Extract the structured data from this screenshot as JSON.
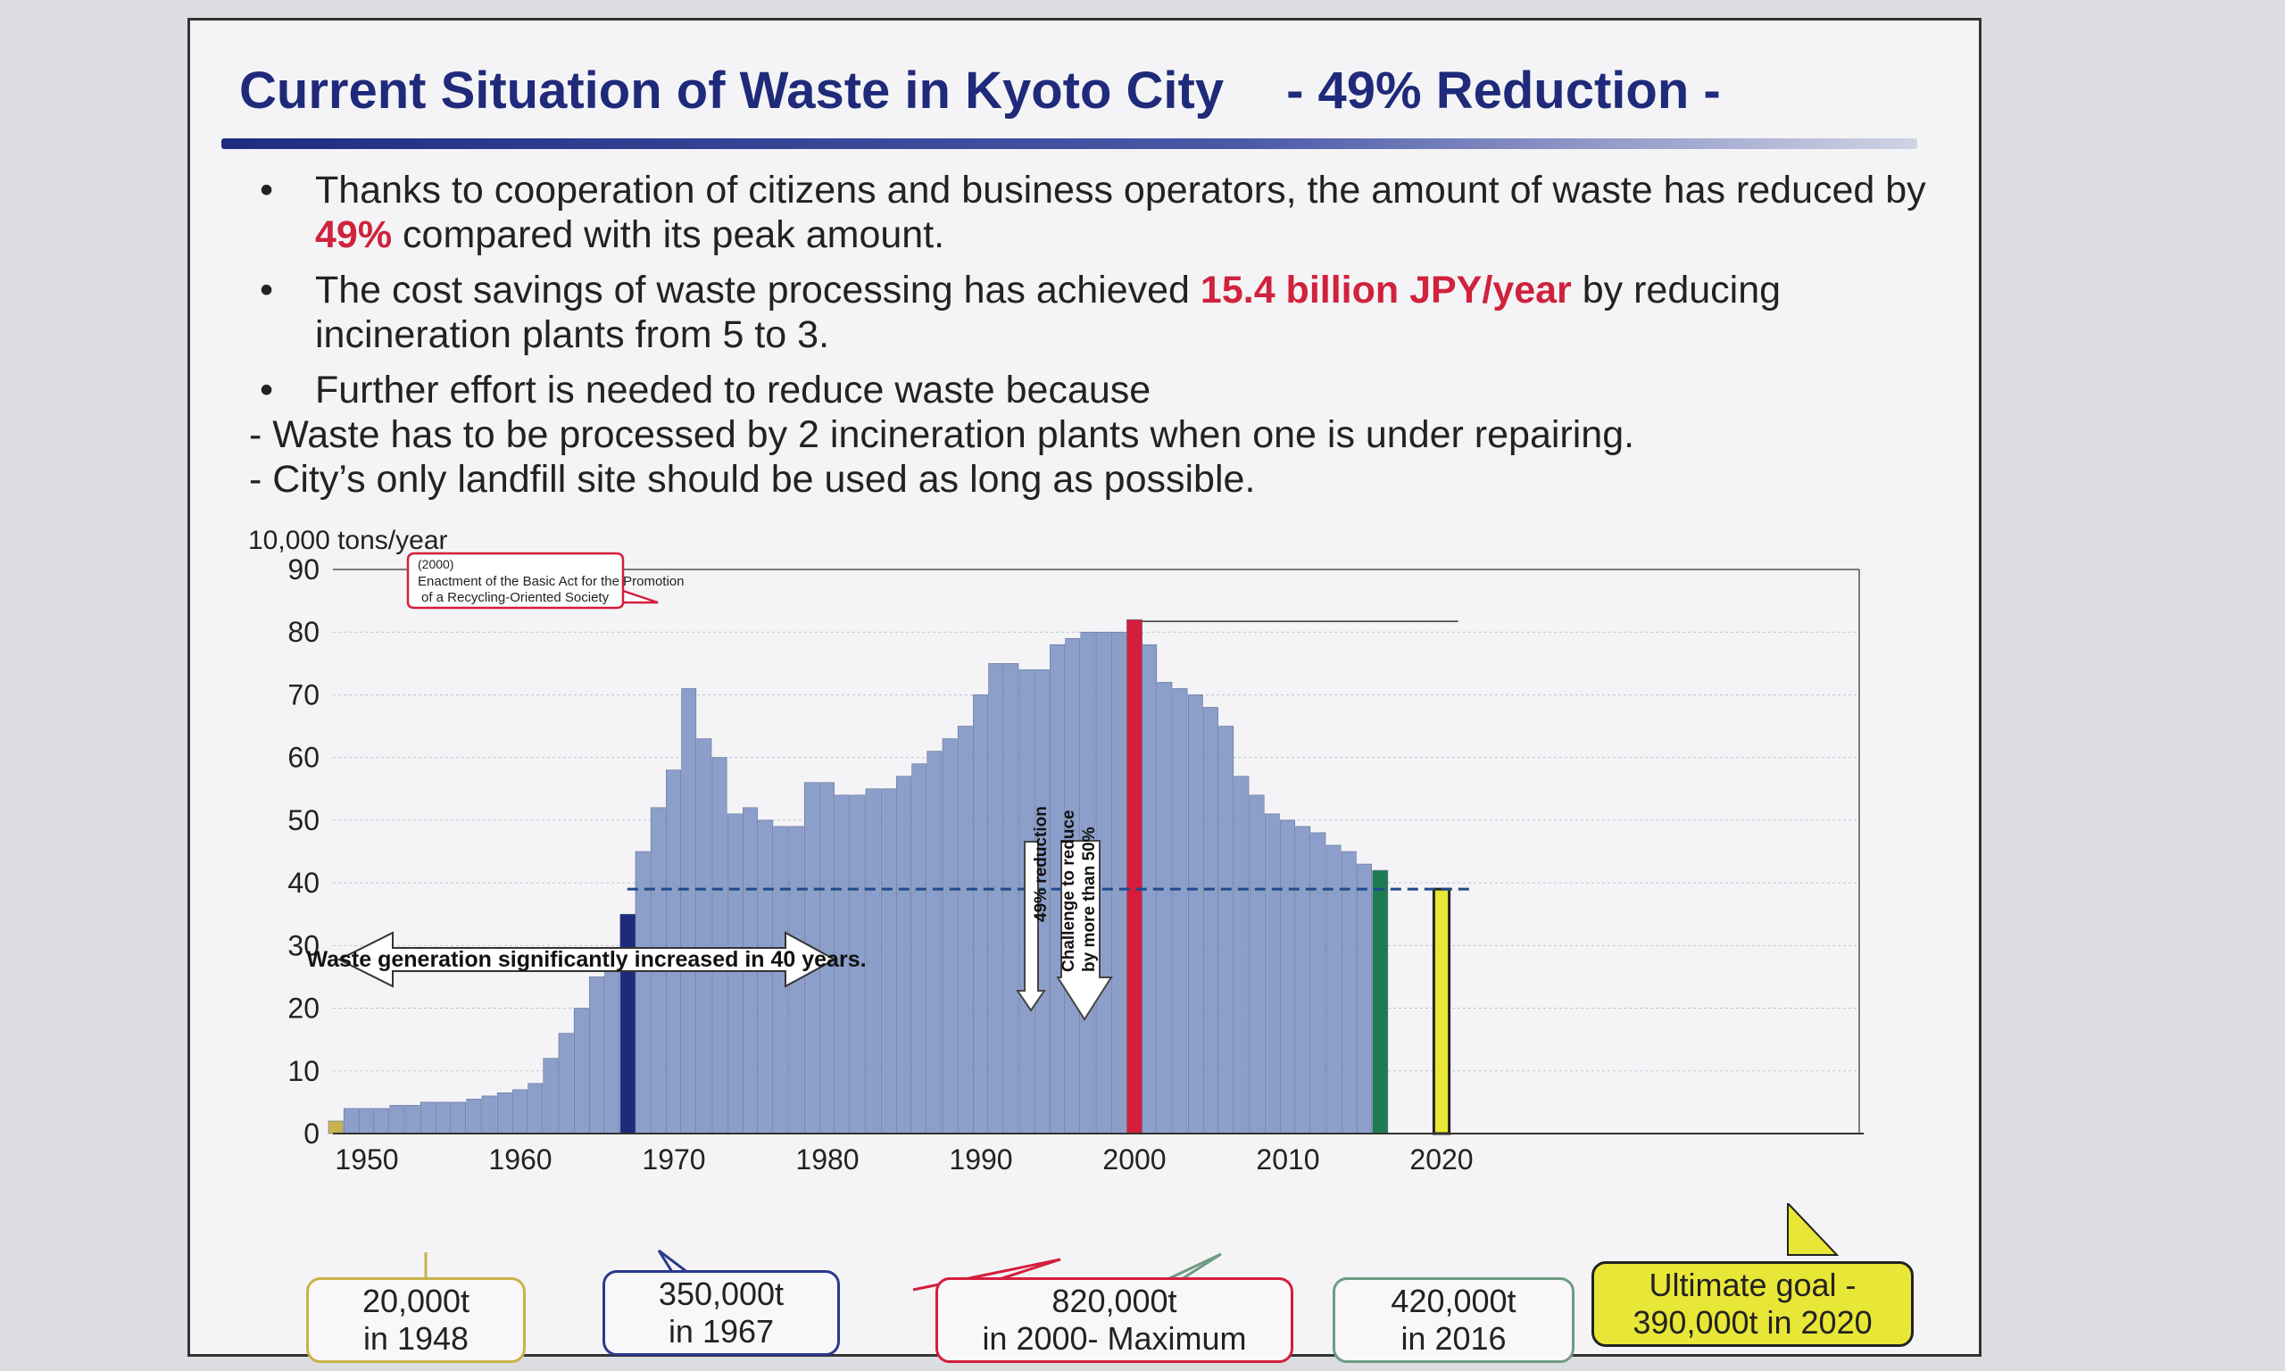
{
  "slide": {
    "title": "Current Situation of Waste in Kyoto City",
    "title_sub": "- 49% Reduction -",
    "bullets": [
      {
        "pre": "Thanks to cooperation of citizens and business operators, the amount of waste has reduced by ",
        "hl": "49%",
        "post": " compared with its peak amount."
      },
      {
        "pre": "The cost savings of waste processing has achieved ",
        "hl": "15.4 billion JPY/year",
        "post": " by reducing incineration plants from 5 to 3."
      },
      {
        "pre": "Further effort is needed to reduce waste because",
        "hl": "",
        "post": ""
      }
    ],
    "sub_bullets": [
      "- Waste has to be processed by 2 incineration plants when one is under repairing.",
      "- City’s only landfill site should be used as long as possible."
    ]
  },
  "chart_data": {
    "type": "bar",
    "ylabel": "10,000 tons/year",
    "ylim": [
      0,
      90
    ],
    "yticks": [
      "0",
      "10",
      "20",
      "30",
      "40",
      "50",
      "60",
      "70",
      "80",
      "90"
    ],
    "xticks": [
      "1950",
      "1960",
      "1970",
      "1980",
      "1990",
      "2000",
      "2010",
      "2020"
    ],
    "years": [
      1948,
      1949,
      1950,
      1951,
      1952,
      1953,
      1954,
      1955,
      1956,
      1957,
      1958,
      1959,
      1960,
      1961,
      1962,
      1963,
      1964,
      1965,
      1966,
      1967,
      1968,
      1969,
      1970,
      1971,
      1972,
      1973,
      1974,
      1975,
      1976,
      1977,
      1978,
      1979,
      1980,
      1981,
      1982,
      1983,
      1984,
      1985,
      1986,
      1987,
      1988,
      1989,
      1990,
      1991,
      1992,
      1993,
      1994,
      1995,
      1996,
      1997,
      1998,
      1999,
      2000,
      2001,
      2002,
      2003,
      2004,
      2005,
      2006,
      2007,
      2008,
      2009,
      2010,
      2011,
      2012,
      2013,
      2014,
      2015,
      2016,
      2020
    ],
    "values": [
      2,
      4,
      4,
      4,
      4.5,
      4.5,
      5,
      5,
      5,
      5.5,
      6,
      6.5,
      7,
      8,
      12,
      16,
      20,
      25,
      29,
      35,
      45,
      52,
      58,
      71,
      63,
      60,
      51,
      52,
      50,
      49,
      49,
      56,
      56,
      54,
      54,
      55,
      55,
      57,
      59,
      61,
      63,
      65,
      70,
      75,
      75,
      74,
      74,
      78,
      79,
      80,
      80,
      80,
      82,
      78,
      72,
      71,
      70,
      68,
      65,
      57,
      54,
      51,
      50,
      49,
      48,
      46,
      45,
      43,
      42,
      39
    ],
    "colors": {
      "bar": "#8c9fca",
      "bar_edge": "#5f6f9a",
      "first": "#c8b24a",
      "y1967": "#1f2a7a",
      "y2000": "#d41e3c",
      "y2016": "#1f7a52",
      "y2020": "#e8e636",
      "target": "#1f4a8c"
    },
    "callout_2000": {
      "line1": "(2000)",
      "line2": "Enactment of the Basic Act for the Promotion",
      "line3": "of a Recycling-Oriented Society"
    },
    "increase_label": "Waste generation significantly increased in 40 years.",
    "reduction_label": "49% reduction",
    "challenge_label_1": "Challenge to reduce",
    "challenge_label_2": "by more than 50%",
    "boxes": [
      {
        "line1": "20,000t",
        "line2": "in 1948",
        "color": "#c8b24a"
      },
      {
        "line1": "350,000t",
        "line2": "in 1967",
        "color": "#2b3a8c"
      },
      {
        "line1": "820,000t",
        "line2": "in 2000- Maximum",
        "color": "#d41e3c"
      },
      {
        "line1": "420,000t",
        "line2": "in 2016",
        "color": "#6f9a84"
      },
      {
        "line1": "Ultimate goal -",
        "line2": "390,000t in 2020",
        "color": "#222222"
      }
    ]
  }
}
